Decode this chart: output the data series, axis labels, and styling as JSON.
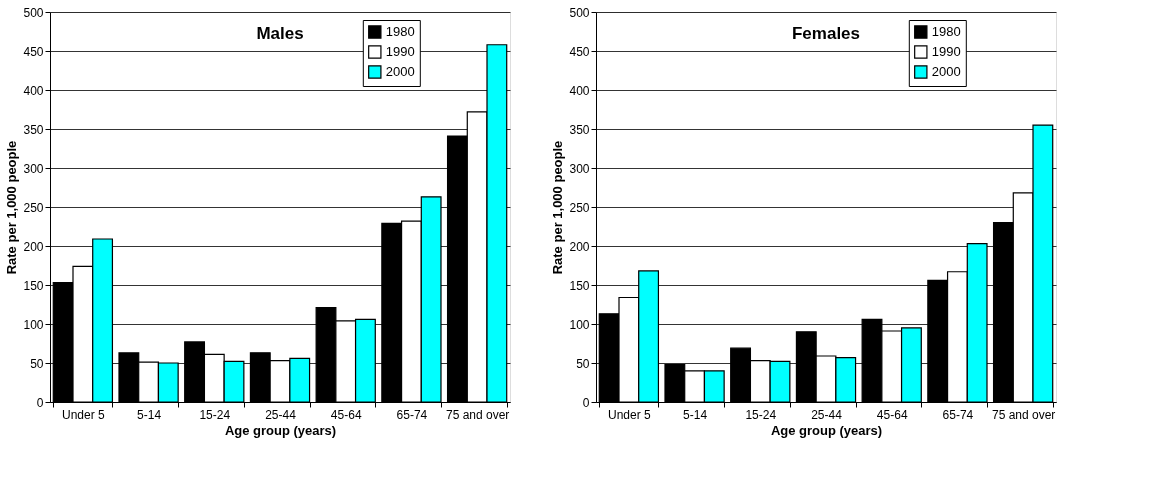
{
  "chart_data": [
    {
      "type": "bar",
      "title": "Males",
      "xlabel": "Age group (years)",
      "ylabel": "Rate per 1,000 people",
      "categories": [
        "Under 5",
        "5-14",
        "15-24",
        "25-44",
        "45-64",
        "65-74",
        "75 and over"
      ],
      "series": [
        {
          "name": "1980",
          "color": "#000000",
          "values": [
            153,
            63,
            77,
            63,
            121,
            229,
            341
          ]
        },
        {
          "name": "1990",
          "color": "#ffffff",
          "values": [
            174,
            51,
            61,
            53,
            104,
            232,
            372
          ]
        },
        {
          "name": "2000",
          "color": "#00ffff",
          "values": [
            209,
            50,
            52,
            56,
            106,
            263,
            458
          ]
        }
      ],
      "ylim": [
        0,
        500
      ],
      "yticks": [
        0,
        50,
        100,
        150,
        200,
        250,
        300,
        350,
        400,
        450,
        500
      ],
      "grid": "y",
      "legend": "top right"
    },
    {
      "type": "bar",
      "title": "Females",
      "xlabel": "Age group (years)",
      "ylabel": "Rate per 1,000 people",
      "categories": [
        "Under 5",
        "5-14",
        "15-24",
        "25-44",
        "45-64",
        "65-74",
        "75 and over"
      ],
      "series": [
        {
          "name": "1980",
          "color": "#000000",
          "values": [
            113,
            48,
            69,
            90,
            106,
            156,
            230
          ]
        },
        {
          "name": "1990",
          "color": "#ffffff",
          "values": [
            134,
            40,
            53,
            59,
            91,
            167,
            268
          ]
        },
        {
          "name": "2000",
          "color": "#00ffff",
          "values": [
            168,
            40,
            52,
            57,
            95,
            203,
            355
          ]
        }
      ],
      "ylim": [
        0,
        500
      ],
      "yticks": [
        0,
        50,
        100,
        150,
        200,
        250,
        300,
        350,
        400,
        450,
        500
      ],
      "grid": "y",
      "legend": "top right"
    }
  ]
}
